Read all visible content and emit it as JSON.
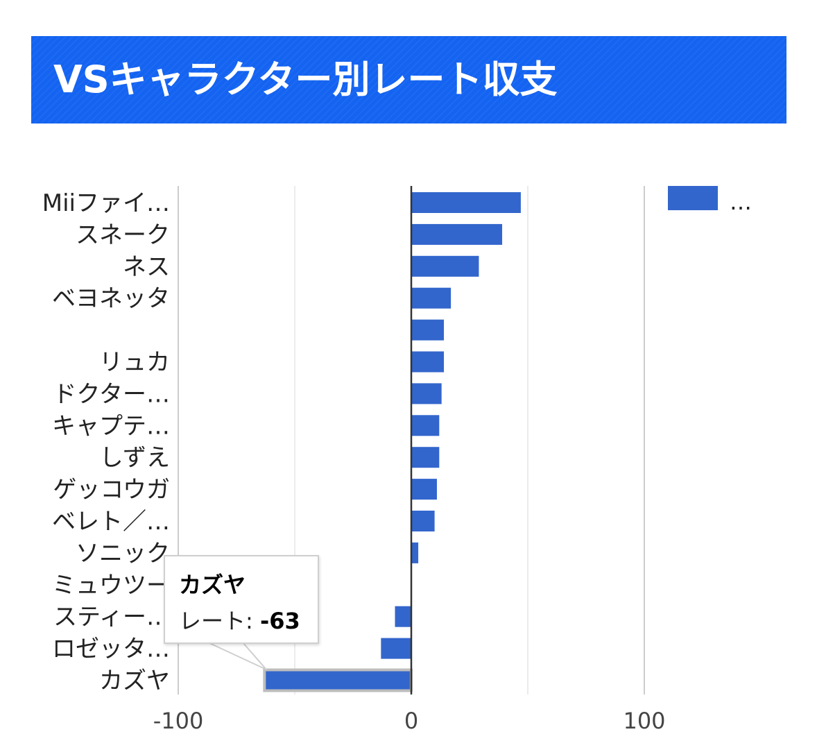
{
  "header": {
    "title": "VSキャラクター別レート収支"
  },
  "chart_data": {
    "type": "bar",
    "orientation": "horizontal",
    "categories": [
      "Miiファイ…",
      "スネーク",
      "ネス",
      "ベヨネッタ",
      "",
      "リュカ",
      "ドクター…",
      "キャプテ…",
      "しずえ",
      "ゲッコウガ",
      "ベレト／…",
      "ソニック",
      "ミュウツー",
      "スティー…",
      "ロゼッタ…",
      "カズヤ"
    ],
    "series": [
      {
        "name": "…",
        "values": [
          47,
          39,
          29,
          17,
          14,
          14,
          13,
          12,
          12,
          11,
          10,
          3,
          0,
          -7,
          -13,
          -63
        ],
        "color": "#3366cc"
      }
    ],
    "xlim": [
      -101,
      150
    ],
    "xticks": [
      -100,
      0,
      100
    ],
    "xtick_labels": [
      "-100",
      "0",
      "100"
    ],
    "grid": true,
    "legend": "top-right",
    "tooltip": {
      "category": "カズヤ",
      "label": "レート: ",
      "value": "-63"
    }
  }
}
